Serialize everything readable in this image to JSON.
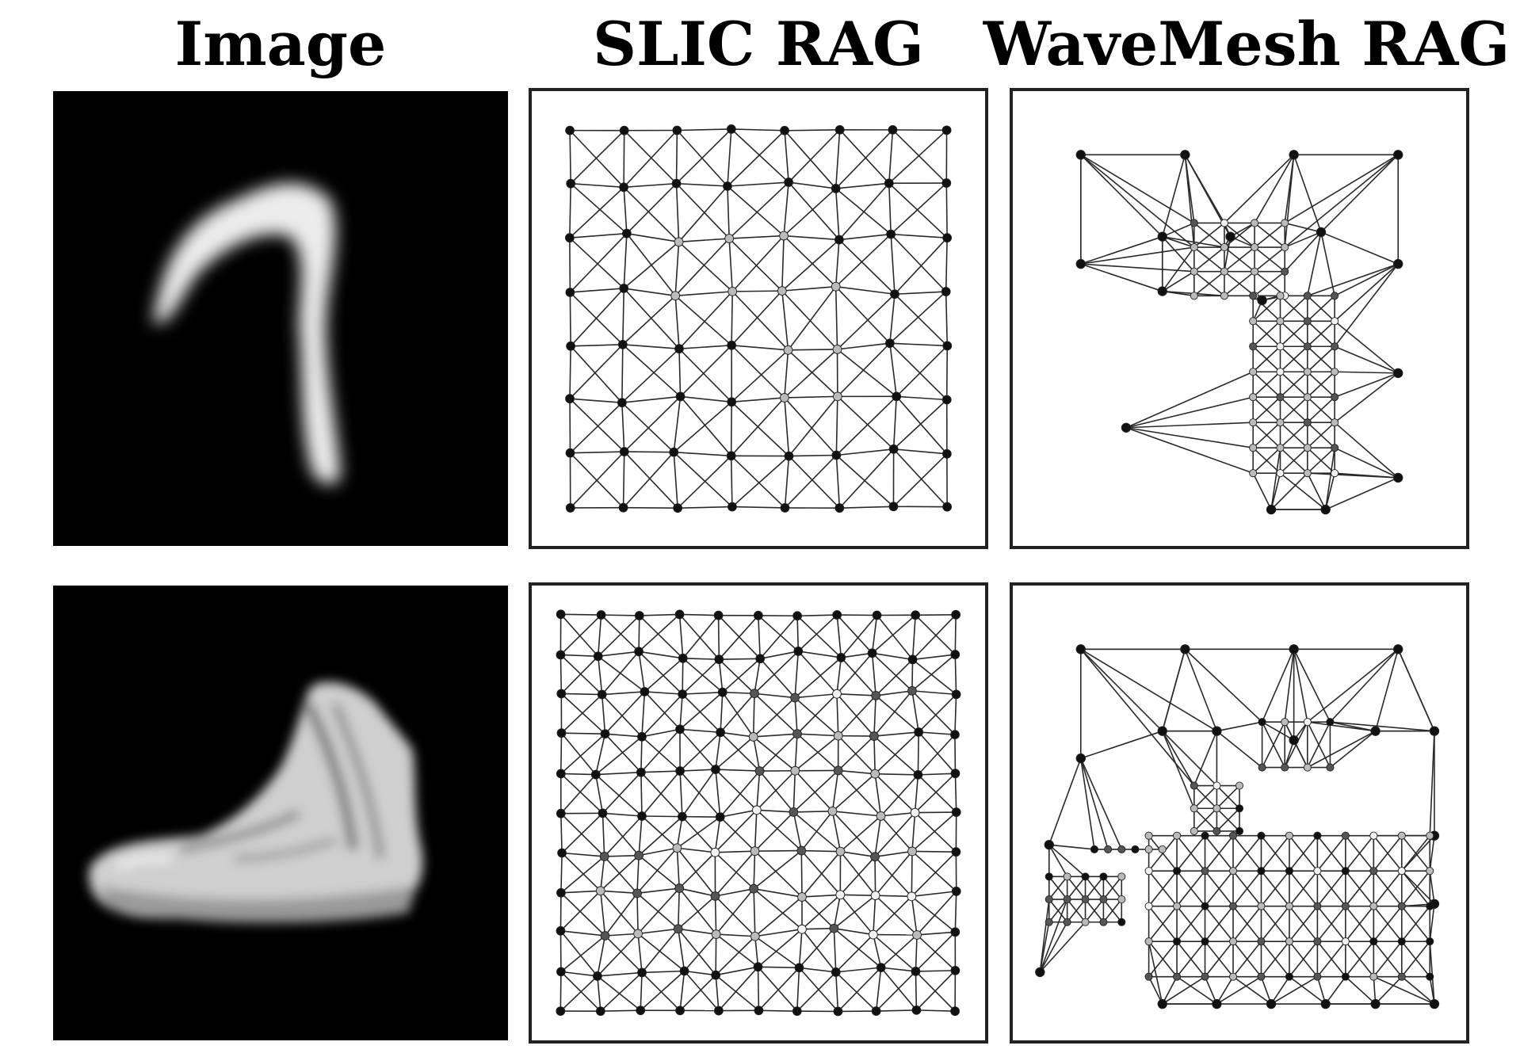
{
  "headers": {
    "image": "Image",
    "slic": "SLIC RAG",
    "wavemesh": "WaveMesh RAG"
  },
  "rows": [
    {
      "subject": "handwritten-digit-seven",
      "image_type": "grayscale blurred digit"
    },
    {
      "subject": "sneaker",
      "image_type": "grayscale blurred shoe"
    }
  ],
  "colors": {
    "background": "#ffffff",
    "image_background": "#000000",
    "frame": "#222222",
    "edge": "#2a2a2a",
    "node_dark": "#111111",
    "node_mid": "#555555",
    "node_light": "#bbbbbb",
    "node_white": "#f2f2f2"
  }
}
